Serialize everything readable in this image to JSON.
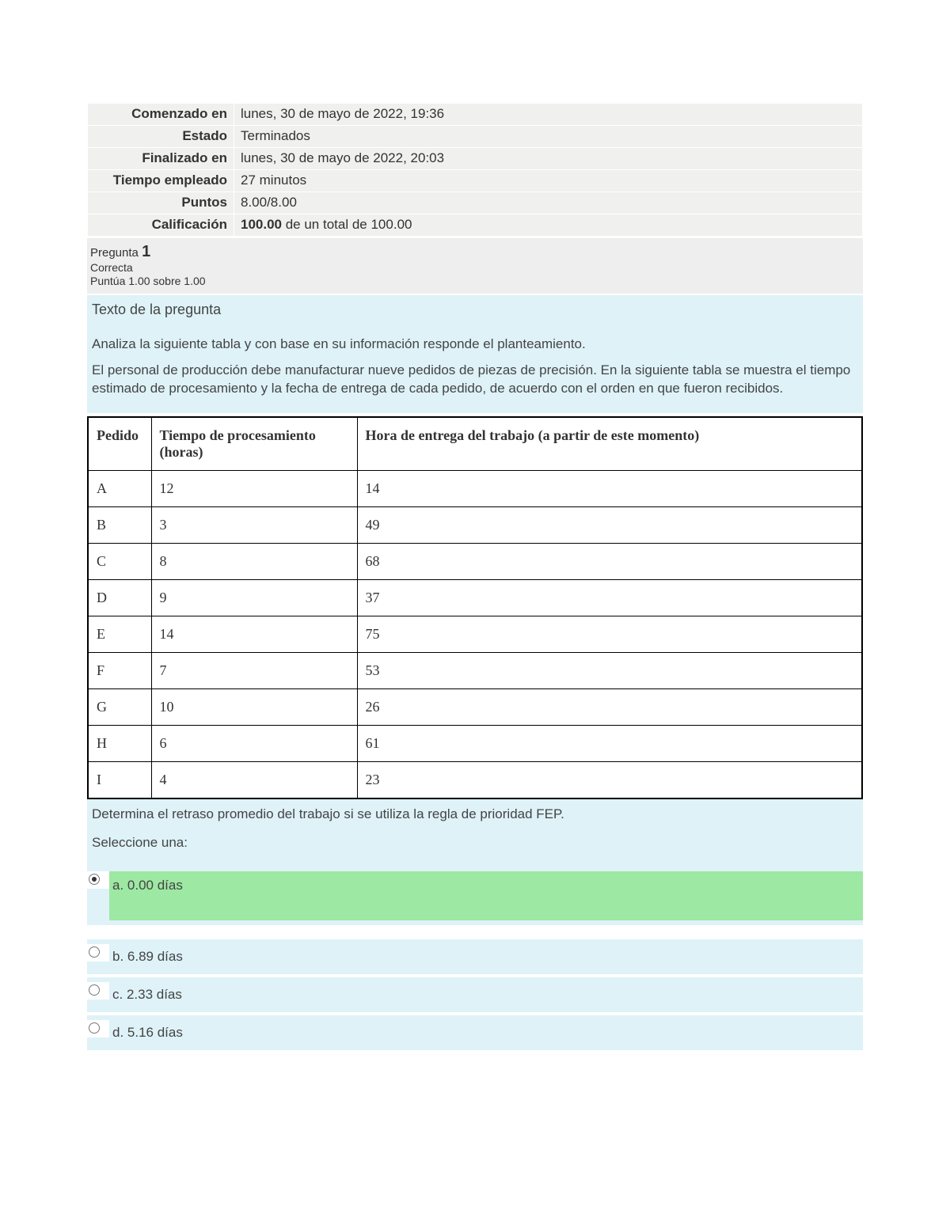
{
  "info": {
    "rows": [
      {
        "label": "Comenzado en",
        "value": "lunes, 30 de mayo de 2022, 19:36"
      },
      {
        "label": "Estado",
        "value": "Terminados"
      },
      {
        "label": "Finalizado en",
        "value": "lunes, 30 de mayo de 2022, 20:03"
      },
      {
        "label": "Tiempo empleado",
        "value": "27 minutos"
      },
      {
        "label": "Puntos",
        "value": "8.00/8.00"
      },
      {
        "label": "Calificación",
        "value_html": "<b>100.00</b> de un total de 100.00"
      }
    ]
  },
  "question": {
    "word": "Pregunta",
    "number": "1",
    "status": "Correcta",
    "grade": "Puntúa 1.00 sobre 1.00",
    "heading": "Texto de la pregunta",
    "para1": "Analiza la siguiente tabla y con base en su información responde el planteamiento.",
    "para2": "El personal de producción debe manufacturar nueve pedidos de piezas de precisión. En la siguiente tabla se muestra el tiempo estimado de procesamiento y la fecha de entrega de cada pedido, de acuerdo con el orden en que fueron recibidos."
  },
  "data_table": {
    "headers": [
      "Pedido",
      "Tiempo de procesamiento (horas)",
      "Hora de entrega del trabajo (a partir de este momento)"
    ],
    "rows": [
      [
        "A",
        "12",
        "14"
      ],
      [
        "B",
        "3",
        "49"
      ],
      [
        "C",
        "8",
        "68"
      ],
      [
        "D",
        "9",
        "37"
      ],
      [
        "E",
        "14",
        "75"
      ],
      [
        "F",
        "7",
        "53"
      ],
      [
        "G",
        "10",
        "26"
      ],
      [
        "H",
        "6",
        "61"
      ],
      [
        "I",
        "4",
        "23"
      ]
    ]
  },
  "prompt_after": "Determina el retraso promedio del trabajo si se utiliza la regla de prioridad FEP.",
  "select_one": "Seleccione una:",
  "options": [
    {
      "label": "a. 0.00 días",
      "selected": true,
      "correct": true
    },
    {
      "label": "b. 6.89 días",
      "selected": false,
      "correct": false
    },
    {
      "label": "c. 2.33 días",
      "selected": false,
      "correct": false
    },
    {
      "label": "d. 5.16 días",
      "selected": false,
      "correct": false
    }
  ],
  "colors": {
    "info_bg": "#f0f0ee",
    "block_bg": "#def2f8",
    "correct_bg": "#9de8a3",
    "header_bg": "#eeeeee"
  }
}
